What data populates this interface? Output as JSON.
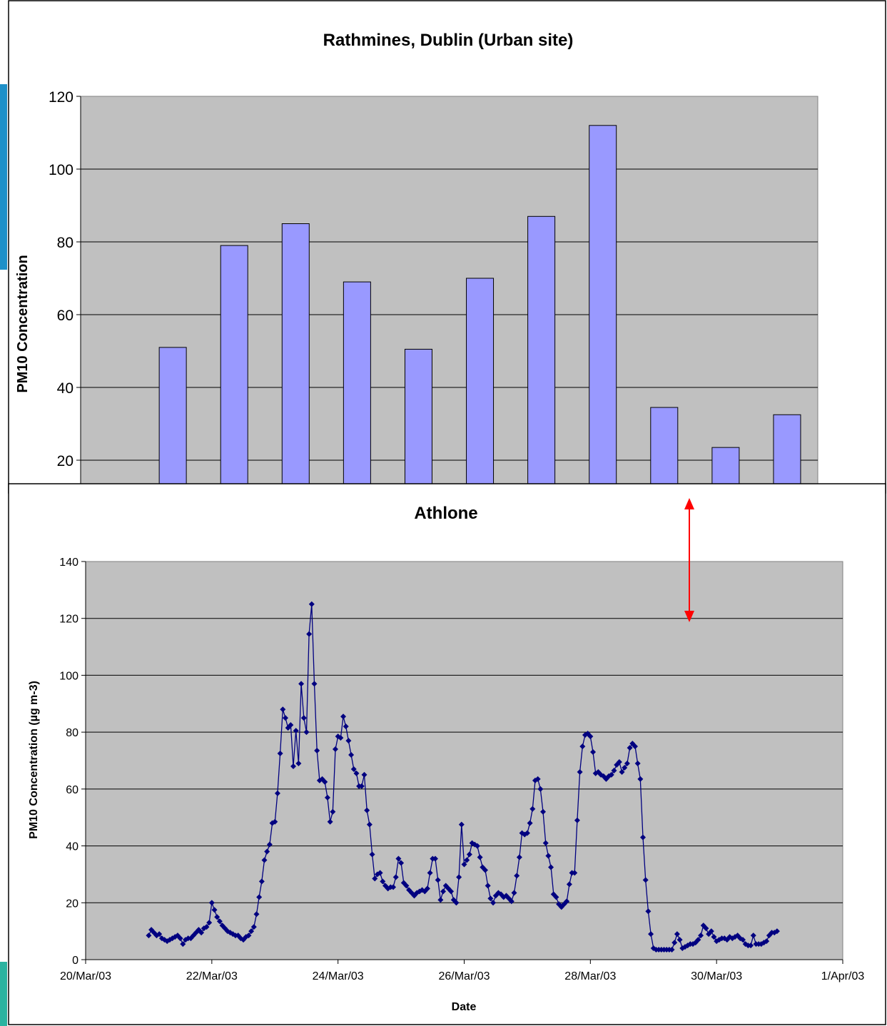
{
  "colors": {
    "plot_background": "#c0c0c0",
    "bar_fill": "#9999ff",
    "bar_stroke": "#000000",
    "line_series": "#000080",
    "annotation_arrow": "#ff0000",
    "side_accent": "#1e90c8"
  },
  "chart_data": [
    {
      "type": "bar",
      "title": "Rathmines, Dublin (Urban site)",
      "xlabel": "",
      "ylabel": "PM10 Concentration",
      "ylim": [
        0,
        120
      ],
      "visible_ylim": [
        14,
        120
      ],
      "y_ticks": [
        "20",
        "40",
        "60",
        "80",
        "100",
        "120"
      ],
      "grid": true,
      "legend": "none",
      "note": "lower part of chart is covered by the second chart",
      "values": [
        51,
        79,
        85,
        69,
        50.5,
        70,
        87,
        112,
        34.5,
        23.5,
        32.5
      ]
    },
    {
      "type": "line",
      "title": "Athlone",
      "xlabel": "Date",
      "ylabel": "PM10 Concentration (µg m-3)",
      "ylim": [
        0,
        140
      ],
      "xlim": [
        "2003-03-20",
        "2003-04-01"
      ],
      "x_tick_labels": [
        "20/Mar/03",
        "22/Mar/03",
        "24/Mar/03",
        "26/Mar/03",
        "28/Mar/03",
        "30/Mar/03",
        "1/Apr/03"
      ],
      "y_ticks": [
        "0",
        "20",
        "40",
        "60",
        "80",
        "100",
        "120",
        "140"
      ],
      "grid": true,
      "legend": "none",
      "marker": "diamond",
      "x_start": "2003-03-21T00:00",
      "x_step_hours": 1,
      "values": [
        8.5,
        10.5,
        9.5,
        8.5,
        9,
        7.5,
        7,
        6.5,
        7,
        7.5,
        8,
        8.5,
        7.5,
        5.5,
        7,
        7.5,
        7.5,
        8.5,
        9.5,
        10.5,
        9.5,
        11,
        11.5,
        13,
        20,
        17.5,
        15,
        13.5,
        12,
        11,
        10,
        9.5,
        9,
        8.5,
        8.5,
        7.5,
        7,
        8,
        8.5,
        10,
        11.5,
        16,
        22,
        27.5,
        35,
        38,
        40.5,
        48,
        48.5,
        58.5,
        72.5,
        88,
        85,
        81.5,
        82.5,
        68,
        80.5,
        69,
        97,
        85,
        80,
        114.5,
        125,
        97,
        73.5,
        63,
        63.5,
        62.5,
        57,
        48.5,
        52,
        74,
        78.5,
        78,
        85.5,
        82,
        77,
        72,
        67,
        65.5,
        61,
        61,
        65,
        52.5,
        47.5,
        37,
        28.5,
        30,
        30.5,
        27.5,
        26,
        25,
        25.5,
        25.5,
        29,
        35.5,
        34,
        27,
        26,
        24.5,
        23.5,
        22.5,
        23.5,
        24,
        24.5,
        24,
        25,
        30.5,
        35.5,
        35.5,
        28,
        21,
        24,
        26,
        25,
        24,
        21,
        20,
        29,
        47.5,
        33.5,
        35,
        37,
        41,
        40.5,
        40,
        36,
        32.5,
        31.5,
        26,
        21.5,
        20,
        22.5,
        23.5,
        23,
        22,
        22.5,
        21.5,
        20.5,
        23.5,
        29.5,
        36,
        44.5,
        44,
        44.5,
        48,
        53,
        63,
        63.5,
        60,
        52,
        41,
        36.5,
        32.5,
        23,
        22,
        19.5,
        18.5,
        19.5,
        20.5,
        26.5,
        30.5,
        30.5,
        49,
        66,
        75,
        79,
        79.5,
        78.5,
        73,
        65.5,
        66,
        65,
        64.5,
        63.5,
        64.5,
        65,
        66.5,
        68.5,
        69.5,
        66,
        67.5,
        69,
        74.5,
        76,
        75,
        69,
        63.5,
        43,
        28,
        17,
        9,
        4,
        3.5,
        3.5,
        3.5,
        3.5,
        3.5,
        3.5,
        3.5,
        6,
        9,
        7,
        4,
        4.5,
        5,
        5.5,
        5.5,
        6,
        7,
        8.5,
        12,
        11,
        9,
        10,
        8,
        6.5,
        7,
        7.5,
        7.5,
        7,
        8,
        7.5,
        8,
        8.5,
        7.5,
        7,
        5.5,
        5,
        5,
        8.5,
        5.5,
        5.5,
        5.5,
        6,
        6.5,
        8.5,
        9.5,
        9.5,
        10
      ]
    }
  ]
}
